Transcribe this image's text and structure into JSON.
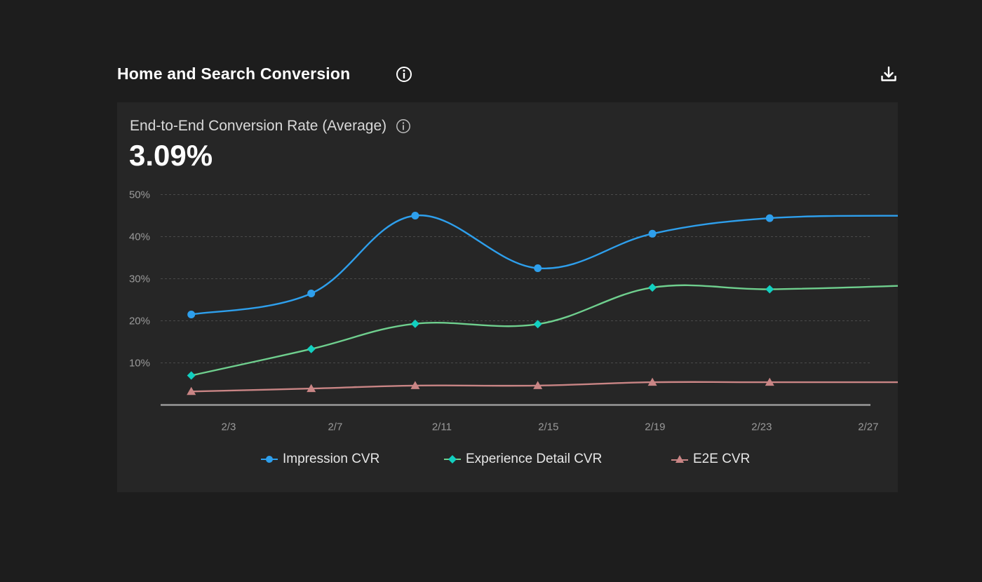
{
  "section": {
    "title": "Home and Search Conversion"
  },
  "icons": {
    "title_info": "info-icon",
    "download": "download-icon",
    "kpi_info": "info-icon"
  },
  "kpi": {
    "label": "End-to-End Conversion Rate (Average)",
    "value": "3.09%"
  },
  "colors": {
    "background": "#1d1d1d",
    "card": "#262626",
    "impression": "#2e9fec",
    "experience_detail_line": "#6fcf8e",
    "experience_detail_marker": "#12cfc0",
    "e2e": "#c98585"
  },
  "chart_data": {
    "type": "line",
    "smooth": true,
    "x_labels": [
      "2/3",
      "2/7",
      "2/11",
      "2/15",
      "2/19",
      "2/23",
      "2/27"
    ],
    "y_ticks": [
      "10%",
      "20%",
      "30%",
      "40%",
      "50%"
    ],
    "ylim": [
      0,
      50
    ],
    "grid": true,
    "legend_position": "bottom",
    "series": [
      {
        "name": "Impression CVR",
        "marker": "circle",
        "color": "#2e9fec",
        "x": [
          1.6,
          6.1,
          10.0,
          14.6,
          18.9,
          23.3,
          28.6
        ],
        "values": [
          21.5,
          26.5,
          45.0,
          32.5,
          40.7,
          44.4,
          45.0
        ]
      },
      {
        "name": "Experience Detail CVR",
        "marker": "diamond",
        "color": "#6fcf8e",
        "marker_color": "#12cfc0",
        "x": [
          1.6,
          6.1,
          10.0,
          14.6,
          18.9,
          23.3,
          28.6
        ],
        "values": [
          7.0,
          13.3,
          19.3,
          19.2,
          27.9,
          27.5,
          28.4
        ]
      },
      {
        "name": "E2E CVR",
        "marker": "triangle",
        "color": "#c98585",
        "x": [
          1.6,
          6.1,
          10.0,
          14.6,
          18.9,
          23.3,
          28.6
        ],
        "values": [
          3.2,
          3.9,
          4.6,
          4.6,
          5.4,
          5.4,
          5.4
        ]
      }
    ]
  }
}
